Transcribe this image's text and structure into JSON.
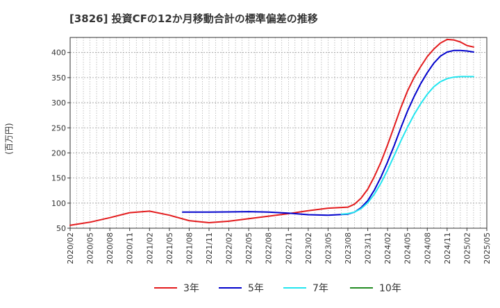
{
  "colors": {
    "s3": "#e31a1c",
    "s5": "#0000cc",
    "s7": "#22e5ef",
    "s10": "#228b22",
    "grid": "#999999",
    "axis": "#333333"
  },
  "chart_data": {
    "type": "line",
    "title": "[3826]  投資CFの12か月移動合計の標準偏差の推移",
    "ylabel": "(百万円)",
    "xlabel": "",
    "ylim": [
      50,
      430
    ],
    "yticks": [
      50,
      100,
      150,
      200,
      250,
      300,
      350,
      400
    ],
    "xticks": [
      "2020/02",
      "2020/05",
      "2020/08",
      "2020/11",
      "2021/02",
      "2021/05",
      "2021/08",
      "2021/11",
      "2022/02",
      "2022/05",
      "2022/08",
      "2022/11",
      "2023/02",
      "2023/05",
      "2023/08",
      "2023/11",
      "2024/02",
      "2024/05",
      "2024/08",
      "2024/11",
      "2025/02",
      "2025/05"
    ],
    "grid": true,
    "legend_position": "bottom",
    "series": [
      {
        "name": "3年",
        "color_key": "s3",
        "points": [
          [
            "2020/02",
            56
          ],
          [
            "2020/05",
            62
          ],
          [
            "2020/08",
            71
          ],
          [
            "2020/11",
            81
          ],
          [
            "2021/02",
            84
          ],
          [
            "2021/05",
            76
          ],
          [
            "2021/08",
            65
          ],
          [
            "2021/11",
            61
          ],
          [
            "2022/02",
            64
          ],
          [
            "2022/05",
            69
          ],
          [
            "2022/08",
            74
          ],
          [
            "2022/11",
            79
          ],
          [
            "2023/02",
            85
          ],
          [
            "2023/05",
            90
          ],
          [
            "2023/08",
            92
          ],
          [
            "2023/09",
            98
          ],
          [
            "2023/10",
            110
          ],
          [
            "2023/11",
            128
          ],
          [
            "2023/12",
            153
          ],
          [
            "2024/01",
            182
          ],
          [
            "2024/02",
            216
          ],
          [
            "2024/03",
            253
          ],
          [
            "2024/04",
            290
          ],
          [
            "2024/05",
            323
          ],
          [
            "2024/06",
            350
          ],
          [
            "2024/07",
            372
          ],
          [
            "2024/08",
            392
          ],
          [
            "2024/09",
            407
          ],
          [
            "2024/10",
            419
          ],
          [
            "2024/11",
            426
          ],
          [
            "2024/12",
            425
          ],
          [
            "2025/01",
            421
          ],
          [
            "2025/02",
            414
          ],
          [
            "2025/03",
            411
          ]
        ]
      },
      {
        "name": "5年",
        "color_key": "s5",
        "points": [
          [
            "2021/07",
            82
          ],
          [
            "2021/11",
            82
          ],
          [
            "2022/02",
            82.5
          ],
          [
            "2022/05",
            83
          ],
          [
            "2022/08",
            82
          ],
          [
            "2022/11",
            80
          ],
          [
            "2023/02",
            77
          ],
          [
            "2023/05",
            76
          ],
          [
            "2023/08",
            78
          ],
          [
            "2023/09",
            82
          ],
          [
            "2023/10",
            91
          ],
          [
            "2023/11",
            105
          ],
          [
            "2023/12",
            126
          ],
          [
            "2024/01",
            152
          ],
          [
            "2024/02",
            182
          ],
          [
            "2024/03",
            215
          ],
          [
            "2024/04",
            250
          ],
          [
            "2024/05",
            283
          ],
          [
            "2024/06",
            312
          ],
          [
            "2024/07",
            338
          ],
          [
            "2024/08",
            360
          ],
          [
            "2024/09",
            379
          ],
          [
            "2024/10",
            393
          ],
          [
            "2024/11",
            401
          ],
          [
            "2024/12",
            404
          ],
          [
            "2025/01",
            404
          ],
          [
            "2025/02",
            403
          ],
          [
            "2025/03",
            401
          ]
        ]
      },
      {
        "name": "7年",
        "color_key": "s7",
        "points": [
          [
            "2023/07",
            78
          ],
          [
            "2023/08",
            79
          ],
          [
            "2023/09",
            82
          ],
          [
            "2023/10",
            89
          ],
          [
            "2023/11",
            101
          ],
          [
            "2023/12",
            118
          ],
          [
            "2024/01",
            140
          ],
          [
            "2024/02",
            166
          ],
          [
            "2024/03",
            195
          ],
          [
            "2024/04",
            224
          ],
          [
            "2024/05",
            251
          ],
          [
            "2024/06",
            276
          ],
          [
            "2024/07",
            298
          ],
          [
            "2024/08",
            317
          ],
          [
            "2024/09",
            332
          ],
          [
            "2024/10",
            342
          ],
          [
            "2024/11",
            348
          ],
          [
            "2024/12",
            351
          ],
          [
            "2025/01",
            352
          ],
          [
            "2025/02",
            352
          ],
          [
            "2025/03",
            352
          ]
        ]
      },
      {
        "name": "10年",
        "color_key": "s10",
        "points": []
      }
    ]
  }
}
